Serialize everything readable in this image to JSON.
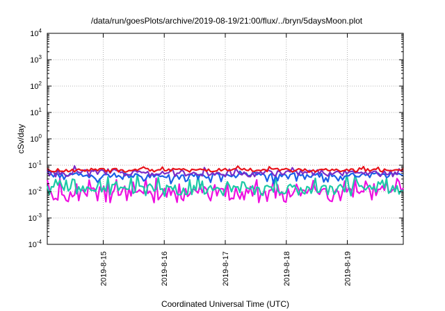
{
  "chart_data": {
    "type": "line",
    "title": "/data/run/goesPlots/archive/2019-08-19/21:00/flux/../bryn/5daysMoon.plot",
    "xlabel": "Coordinated Universal Time (UTC)",
    "ylabel": "cSv/day",
    "yscale": "log",
    "ylim": [
      0.0001,
      10000
    ],
    "xlim": [
      "2019-08-14 02:00",
      "2019-08-19 22:00"
    ],
    "grid": true,
    "x_ticks": [
      "2019-8-15",
      "2019-8-16",
      "2019-8-17",
      "2019-8-18",
      "2019-8-19"
    ],
    "y_ticks": [
      {
        "base": "10",
        "exp": "-4"
      },
      {
        "base": "10",
        "exp": "-3"
      },
      {
        "base": "10",
        "exp": "-2"
      },
      {
        "base": "10",
        "exp": "-1"
      },
      {
        "base": "10",
        "exp": "0"
      },
      {
        "base": "10",
        "exp": "1"
      },
      {
        "base": "10",
        "exp": "2"
      },
      {
        "base": "10",
        "exp": "3"
      },
      {
        "base": "10",
        "exp": "4"
      }
    ],
    "series": [
      {
        "color": "#e8141c",
        "base": 0.065,
        "amp": 0.16,
        "dip": 0.0
      },
      {
        "color": "#7b2cc8",
        "base": 0.052,
        "amp": 0.3,
        "dip": 0.0
      },
      {
        "color": "#1a5fe8",
        "base": 0.042,
        "amp": 0.22,
        "dip": 0.25
      },
      {
        "color": "#1dc9a6",
        "base": 0.012,
        "amp": 0.45,
        "dip": 0.0
      },
      {
        "color": "#ee10e0",
        "base": 0.0085,
        "amp": 0.55,
        "dip": 0.0
      }
    ]
  }
}
